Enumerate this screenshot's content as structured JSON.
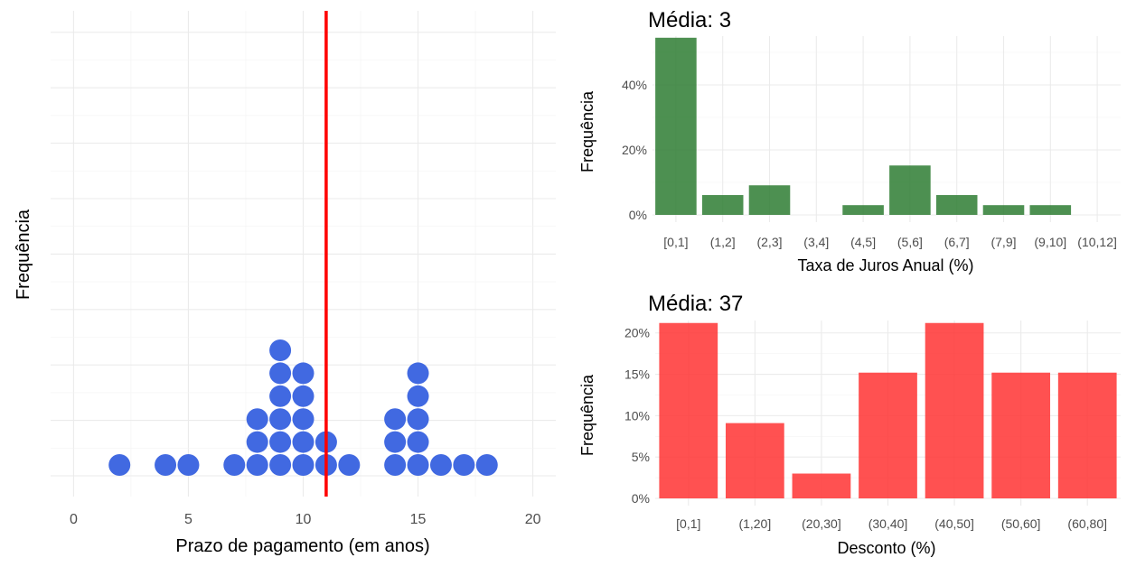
{
  "chart_data": [
    {
      "type": "dotplot",
      "xlabel": "Prazo de pagamento (em anos)",
      "ylabel": "Frequência",
      "xlim": [
        -1,
        21
      ],
      "xticks": [
        0,
        5,
        10,
        15,
        20
      ],
      "dot_color": "#4169E1",
      "mean_line": {
        "value": 11,
        "color": "#FF0000"
      },
      "x": [
        2,
        4,
        5,
        7,
        8,
        9,
        10,
        11,
        12,
        14,
        15,
        16,
        17,
        18
      ],
      "counts": [
        1,
        1,
        1,
        1,
        3,
        6,
        5,
        2,
        1,
        3,
        5,
        1,
        1,
        1
      ]
    },
    {
      "type": "bar",
      "title": "Média: 3",
      "xlabel": "Taxa de Juros Anual (%)",
      "ylabel": "Frequência",
      "color": "#2E7D32",
      "categories": [
        "[0,1]",
        "(1,2]",
        "(2,3]",
        "(3,4]",
        "(4,5]",
        "(5,6]",
        "(6,7]",
        "(7,9]",
        "(9,10]",
        "(10,12]"
      ],
      "values": [
        0.545,
        0.061,
        0.091,
        0,
        0.03,
        0.152,
        0.061,
        0.03,
        0.03,
        0
      ],
      "ylim": [
        0,
        0.55
      ],
      "yticks": [
        0,
        0.2,
        0.4
      ],
      "ytick_labels": [
        "0%",
        "20%",
        "40%"
      ]
    },
    {
      "type": "bar",
      "title": "Média: 37",
      "xlabel": "Desconto (%)",
      "ylabel": "Frequência",
      "color": "#FF3333",
      "categories": [
        "[0,1]",
        "(1,20]",
        "(20,30]",
        "(30,40]",
        "(40,50]",
        "(50,60]",
        "(60,80]"
      ],
      "values": [
        0.212,
        0.091,
        0.03,
        0.152,
        0.212,
        0.152,
        0.152
      ],
      "ylim": [
        0,
        0.215
      ],
      "yticks": [
        0,
        0.05,
        0.1,
        0.15,
        0.2
      ],
      "ytick_labels": [
        "0%",
        "5%",
        "10%",
        "15%",
        "20%"
      ]
    }
  ]
}
